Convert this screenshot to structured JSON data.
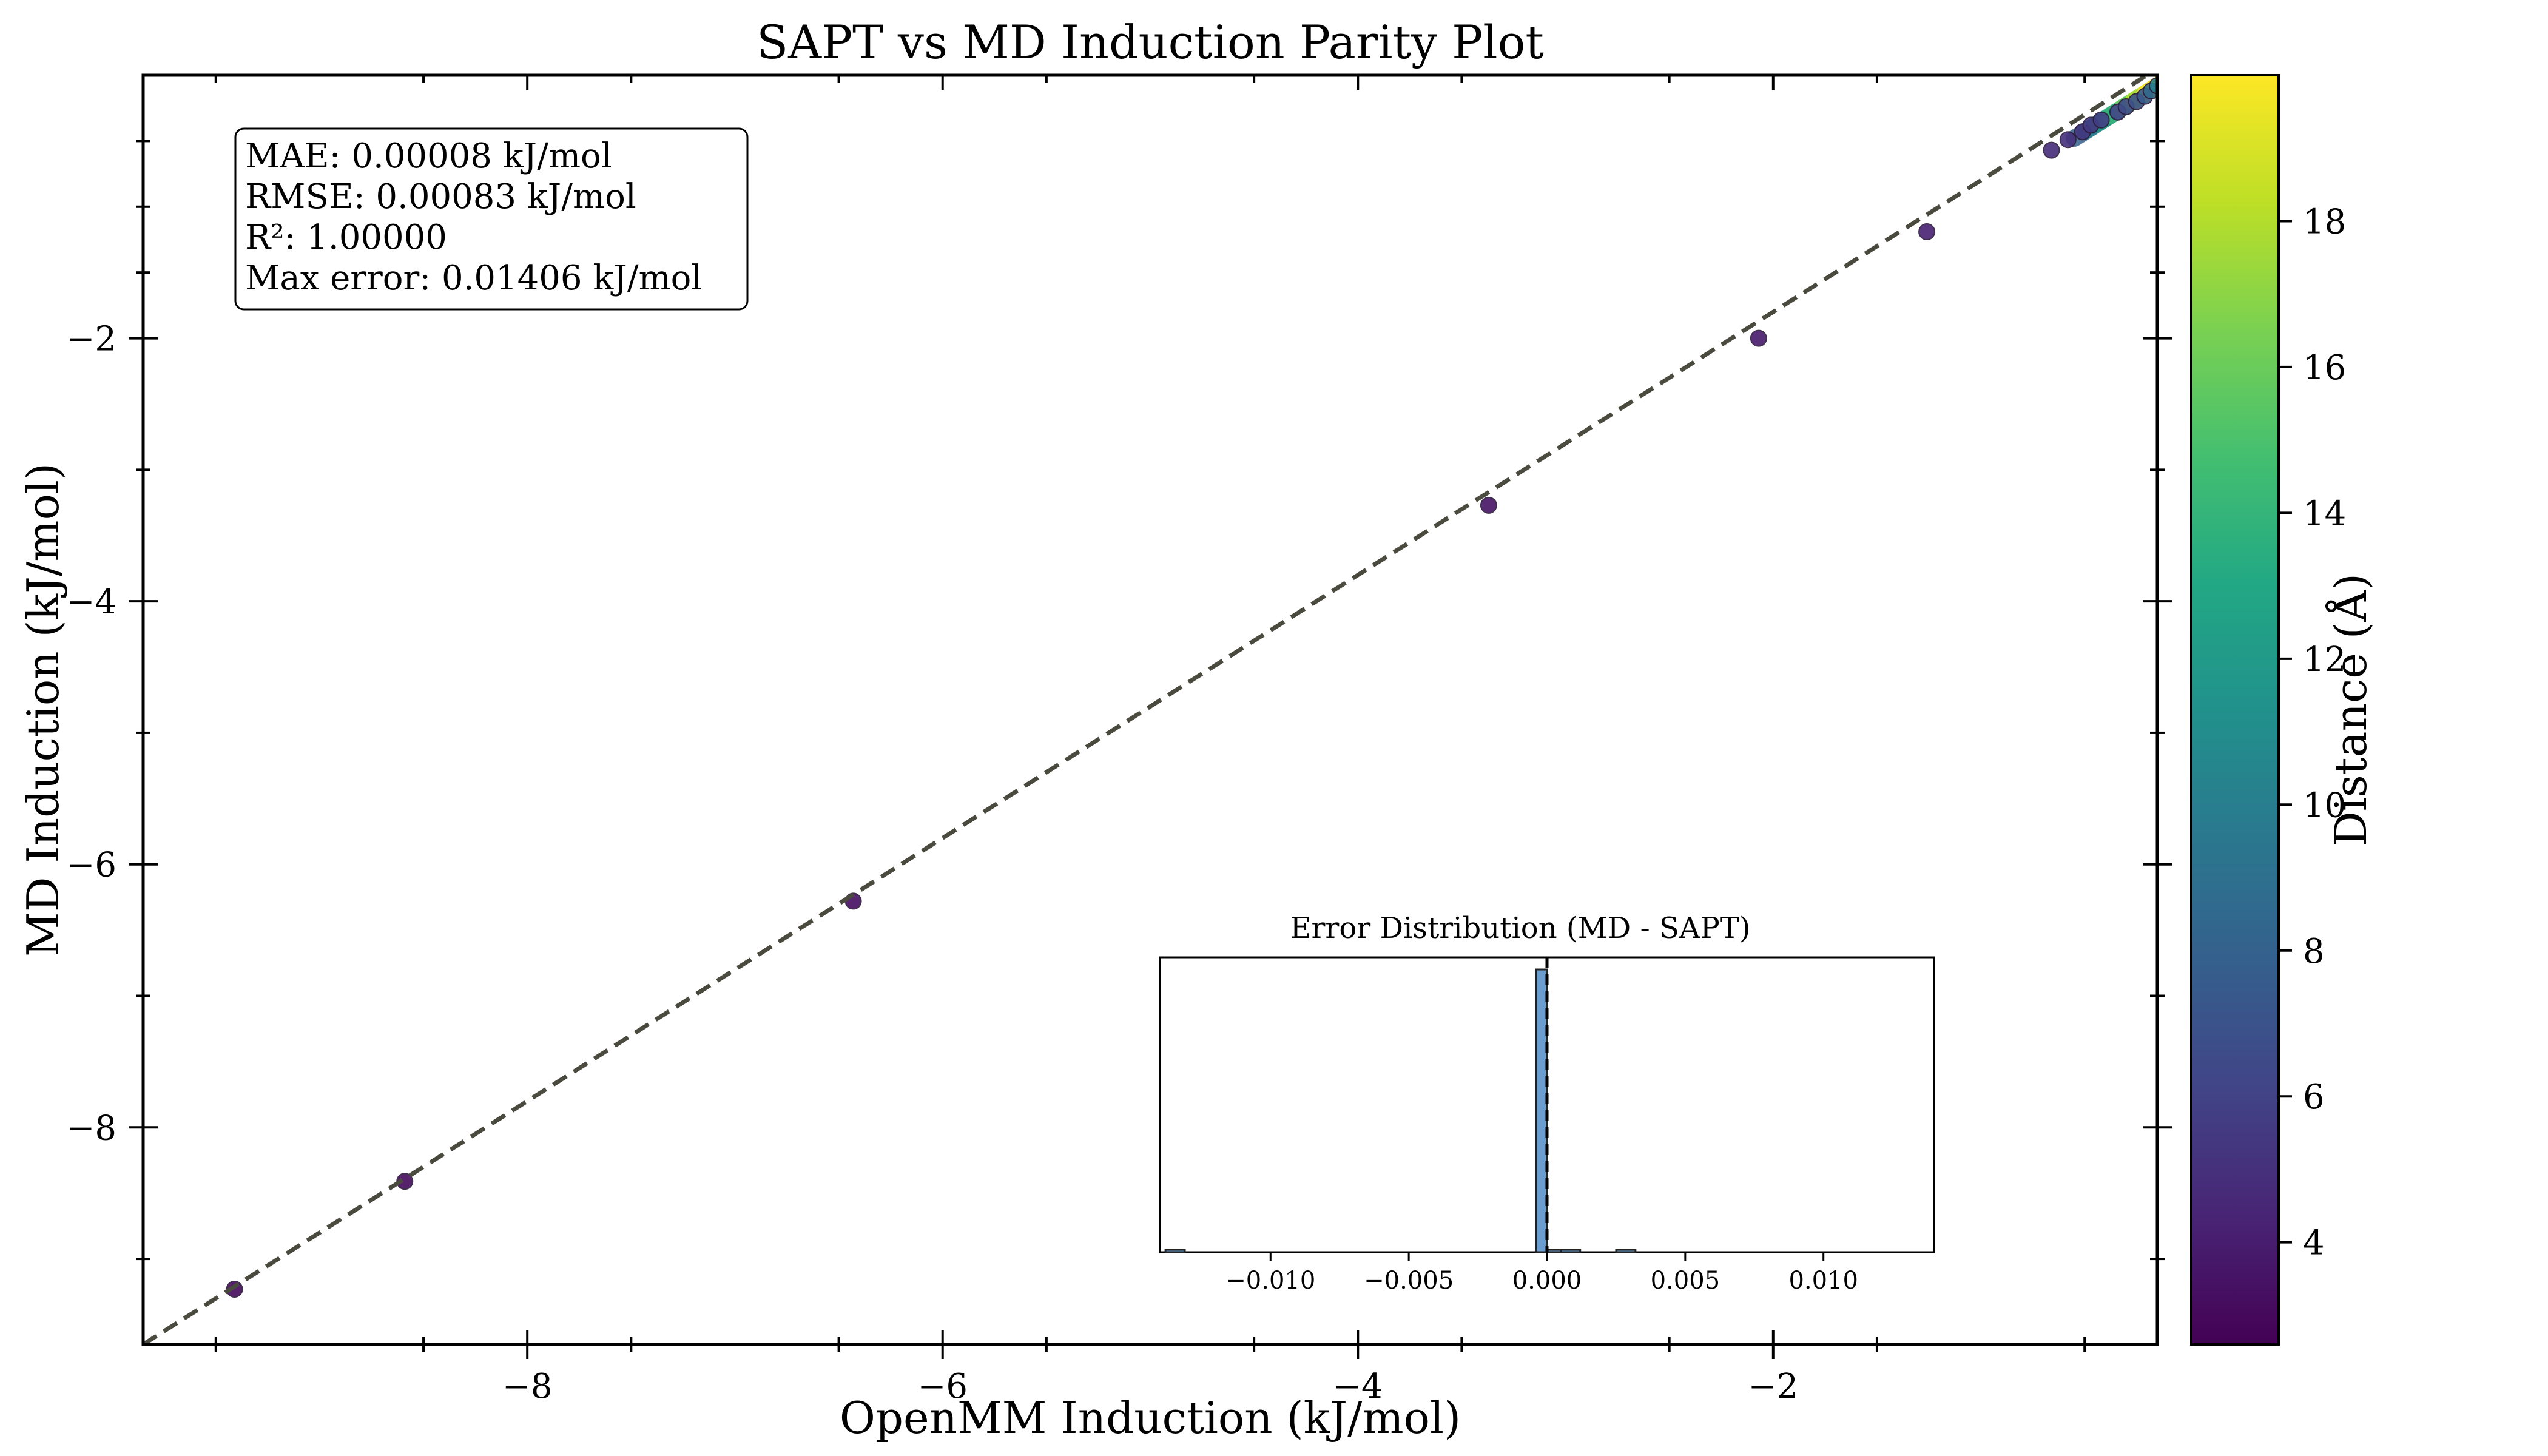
{
  "chart_data": {
    "type": "scatter",
    "title": "SAPT vs MD Induction Parity Plot",
    "xlabel": "OpenMM Induction (kJ/mol)",
    "ylabel": "MD Induction (kJ/mol)",
    "xlim": [
      -9.85,
      -0.15
    ],
    "ylim": [
      -9.65,
      0.0
    ],
    "x_ticks": [
      -8,
      -6,
      -4,
      -2
    ],
    "x_tick_labels": [
      "−8",
      "−6",
      "−4",
      "−2"
    ],
    "y_ticks": [
      -8,
      -6,
      -4,
      -2
    ],
    "y_tick_labels": [
      "−8",
      "−6",
      "−4",
      "−2"
    ],
    "grid": false,
    "parity_line": {
      "style": "dashed",
      "color": "#4a4a3f"
    },
    "points": [
      {
        "x": -9.41,
        "y": -9.23,
        "distance": 3.0
      },
      {
        "x": -8.59,
        "y": -8.41,
        "distance": 3.1
      },
      {
        "x": -6.43,
        "y": -6.28,
        "distance": 3.3
      },
      {
        "x": -3.37,
        "y": -3.27,
        "distance": 3.5
      },
      {
        "x": -2.07,
        "y": -2.0,
        "distance": 3.8
      },
      {
        "x": -1.26,
        "y": -1.19,
        "distance": 4.2
      },
      {
        "x": -0.66,
        "y": -0.57,
        "distance": 4.8
      },
      {
        "x": -0.58,
        "y": -0.49,
        "distance": 5.0
      },
      {
        "x": -0.51,
        "y": -0.43,
        "distance": 5.3
      },
      {
        "x": -0.47,
        "y": -0.38,
        "distance": 5.5
      },
      {
        "x": -0.42,
        "y": -0.34,
        "distance": 5.8
      },
      {
        "x": -0.34,
        "y": -0.28,
        "distance": 6.2
      },
      {
        "x": -0.3,
        "y": -0.24,
        "distance": 6.5
      },
      {
        "x": -0.25,
        "y": -0.2,
        "distance": 7.0
      },
      {
        "x": -0.21,
        "y": -0.16,
        "distance": 7.5
      },
      {
        "x": -0.18,
        "y": -0.12,
        "distance": 8.5
      },
      {
        "x": -0.15,
        "y": -0.08,
        "distance": 10.0
      }
    ],
    "dense_band": [
      {
        "distance": 8.0
      },
      {
        "distance": 10.0
      },
      {
        "distance": 12.0
      },
      {
        "distance": 14.0
      },
      {
        "distance": 16.0
      },
      {
        "distance": 18.0
      },
      {
        "distance": 20.0
      }
    ],
    "stats": [
      "MAE: 0.00008 kJ/mol",
      "RMSE: 0.00083 kJ/mol",
      "R²: 1.00000",
      "Max error: 0.01406 kJ/mol"
    ],
    "colorbar": {
      "label": "Distance (Å)",
      "range": [
        2.6,
        20.0
      ],
      "ticks": [
        4,
        6,
        8,
        10,
        12,
        14,
        16,
        18
      ],
      "tick_labels": [
        "4",
        "6",
        "8",
        "10",
        "12",
        "14",
        "16",
        "18"
      ],
      "colormap": "viridis"
    },
    "inset": {
      "title": "Error Distribution (MD - SAPT)",
      "type": "histogram",
      "xlim": [
        -0.014,
        0.014
      ],
      "x_ticks": [
        -0.01,
        -0.005,
        0.0,
        0.005,
        0.01
      ],
      "x_tick_labels": [
        "−0.010",
        "−0.005",
        "0.000",
        "0.005",
        "0.010"
      ],
      "bins": [
        {
          "x0": -0.0004,
          "x1": 0.0,
          "count": 1000
        },
        {
          "x0": 0.0,
          "x1": 0.0005,
          "count": 8
        },
        {
          "x0": 0.0005,
          "x1": 0.0012,
          "count": 5
        },
        {
          "x0": 0.0025,
          "x1": 0.0032,
          "count": 4
        },
        {
          "x0": -0.0138,
          "x1": -0.0131,
          "count": 3
        }
      ],
      "max_count": 1000,
      "bar_color": "#6a9dd0",
      "zero_line": "dashed"
    }
  }
}
